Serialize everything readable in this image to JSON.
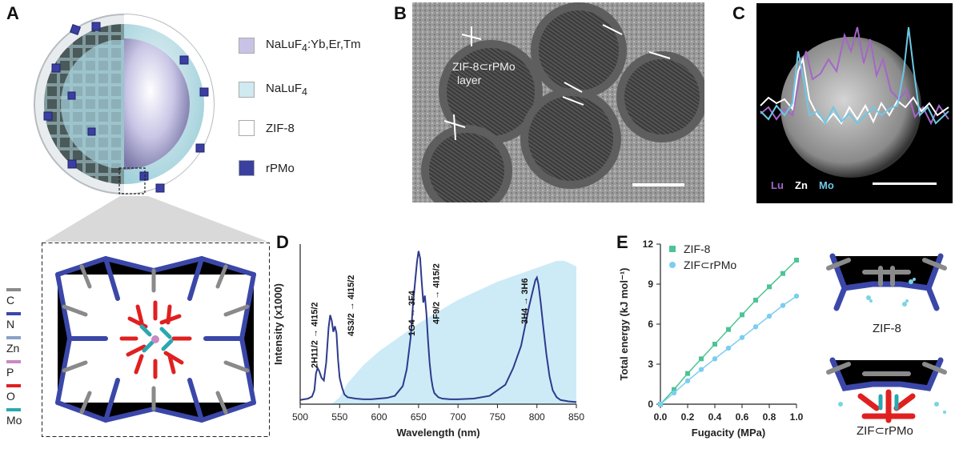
{
  "panels": {
    "A": "A",
    "B": "B",
    "C": "C",
    "D": "D",
    "E": "E"
  },
  "legendA": [
    {
      "label_html": "NaLuF<sub>4</sub>:Yb,Er,Tm",
      "color": "#c8c3e6"
    },
    {
      "label_html": "NaLuF<sub>4</sub>",
      "color": "#cfeaf0"
    },
    {
      "label_html": "ZIF-8",
      "color": "#ffffff"
    },
    {
      "label_html": "rPMo",
      "color": "#3a3fa0"
    }
  ],
  "elements": [
    {
      "name": "C",
      "color": "#8a8a8a"
    },
    {
      "name": "N",
      "color": "#3b47a8"
    },
    {
      "name": "Zn",
      "color": "#8aa0c8"
    },
    {
      "name": "P",
      "color": "#c78ac2"
    },
    {
      "name": "O",
      "color": "#e02020"
    },
    {
      "name": "Mo",
      "color": "#2aa8b0"
    }
  ],
  "panelB": {
    "annotation_line1": "ZIF-8⊂rPMo",
    "annotation_line2": "layer"
  },
  "panelC": {
    "legend": [
      {
        "name": "Lu",
        "color": "#a466c8"
      },
      {
        "name": "Zn",
        "color": "#ffffff"
      },
      {
        "name": "Mo",
        "color": "#6ec8e6"
      }
    ]
  },
  "chart_data": [
    {
      "type": "line",
      "id": "D",
      "xlabel": "Wavelength (nm)",
      "ylabel": "Intensity (x1000)",
      "xlim": [
        500,
        850
      ],
      "xticks": [
        500,
        550,
        600,
        650,
        700,
        750,
        800,
        850
      ],
      "annotations": [
        {
          "html": "<tspan>²H</tspan>",
          "text": "2H11/2 → 4I15/2"
        },
        {
          "text": "4S3/2 → 4I15/2"
        },
        {
          "text": "1G4 → 3F4"
        },
        {
          "text": "4F9/2 → 4I15/2"
        },
        {
          "text": "3H4 → 3H6"
        }
      ],
      "series": [
        {
          "color": "#2e3a8c",
          "x": [
            500,
            505,
            510,
            515,
            518,
            520,
            522,
            524,
            527,
            530,
            533,
            536,
            538,
            540,
            542,
            544,
            546,
            548,
            550,
            553,
            556,
            560,
            570,
            580,
            590,
            600,
            610,
            620,
            630,
            635,
            640,
            643,
            646,
            648,
            650,
            652,
            654,
            656,
            658,
            660,
            662,
            664,
            666,
            668,
            670,
            675,
            680,
            690,
            700,
            720,
            740,
            760,
            770,
            780,
            785,
            790,
            795,
            798,
            800,
            802,
            805,
            808,
            812,
            816,
            820,
            825,
            830,
            840,
            850
          ],
          "y": [
            0.3,
            0.35,
            0.4,
            0.55,
            1.0,
            2.2,
            2.6,
            2.4,
            1.9,
            1.7,
            3.0,
            5.5,
            6.4,
            6.0,
            5.2,
            5.6,
            5.1,
            3.2,
            1.9,
            1.2,
            0.7,
            0.5,
            0.4,
            0.35,
            0.35,
            0.4,
            0.45,
            0.6,
            1.3,
            2.5,
            4.8,
            7.2,
            9.0,
            10.2,
            11.0,
            10.5,
            8.8,
            7.3,
            7.8,
            6.5,
            4.6,
            3.0,
            1.9,
            1.2,
            0.8,
            0.5,
            0.4,
            0.35,
            0.35,
            0.4,
            0.6,
            1.4,
            2.6,
            4.2,
            5.6,
            7.0,
            8.2,
            8.9,
            9.1,
            8.6,
            7.2,
            5.6,
            3.6,
            2.0,
            1.0,
            0.5,
            0.3,
            0.2,
            0.15
          ]
        },
        {
          "type": "area",
          "color": "#cdebf7",
          "x": [
            500,
            540,
            550,
            560,
            580,
            600,
            650,
            700,
            750,
            800,
            825,
            835,
            850
          ],
          "y": [
            0,
            0,
            0.5,
            1.5,
            2.8,
            3.8,
            5.8,
            7.5,
            8.8,
            9.8,
            10.3,
            10.3,
            9.9
          ]
        }
      ]
    },
    {
      "type": "line",
      "id": "E",
      "xlabel": "Fugacity (MPa)",
      "ylabel": "Total energy (kJ mol⁻¹)",
      "xlim": [
        0,
        1
      ],
      "ylim": [
        0,
        12
      ],
      "xticks": [
        0.0,
        0.2,
        0.4,
        0.6,
        0.8,
        1.0
      ],
      "yticks": [
        0,
        3,
        6,
        9,
        12
      ],
      "series": [
        {
          "name": "ZIF-8",
          "color": "#4cc493",
          "marker": "square",
          "x": [
            0.0,
            0.1,
            0.2,
            0.3,
            0.4,
            0.5,
            0.6,
            0.7,
            0.8,
            0.9,
            1.0
          ],
          "y": [
            0.0,
            1.1,
            2.3,
            3.4,
            4.5,
            5.6,
            6.7,
            7.8,
            8.8,
            9.8,
            10.8
          ]
        },
        {
          "name": "ZIF⊂rPMo",
          "color": "#7ccdf0",
          "marker": "circle",
          "x": [
            0.0,
            0.1,
            0.2,
            0.3,
            0.4,
            0.5,
            0.6,
            0.7,
            0.8,
            0.9,
            1.0
          ],
          "y": [
            0.0,
            0.85,
            1.75,
            2.6,
            3.4,
            4.2,
            5.0,
            5.8,
            6.6,
            7.4,
            8.1
          ]
        }
      ]
    }
  ],
  "structureLabels": {
    "top": "ZIF-8",
    "bottom": "ZIF⊂rPMo"
  }
}
